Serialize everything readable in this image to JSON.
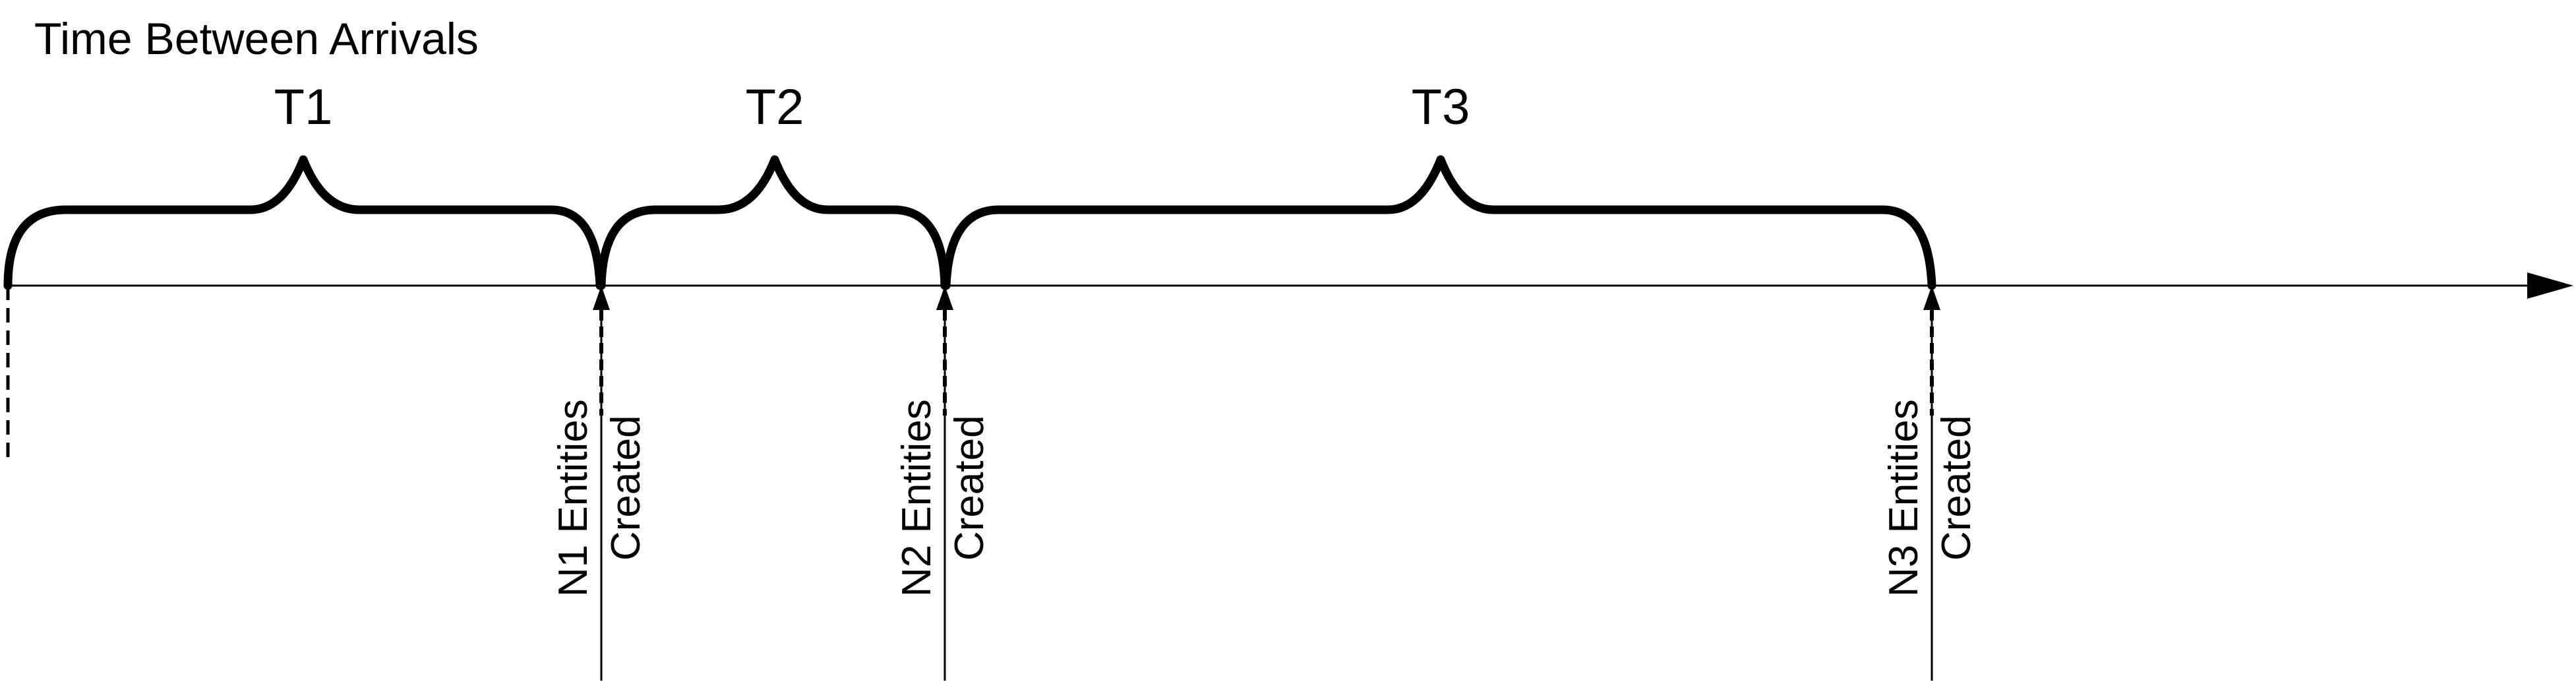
{
  "diagram": {
    "title": "Time Between Arrivals",
    "intervals": [
      {
        "label": "T1"
      },
      {
        "label": "T2"
      },
      {
        "label": "T3"
      }
    ],
    "events": [
      {
        "line1": "N1 Entities",
        "line2": "Created"
      },
      {
        "line1": "N2 Entities",
        "line2": "Created"
      },
      {
        "line1": "N3 Entities",
        "line2": "Created"
      }
    ],
    "colors": {
      "ink": "#000000",
      "background": "#ffffff"
    }
  }
}
